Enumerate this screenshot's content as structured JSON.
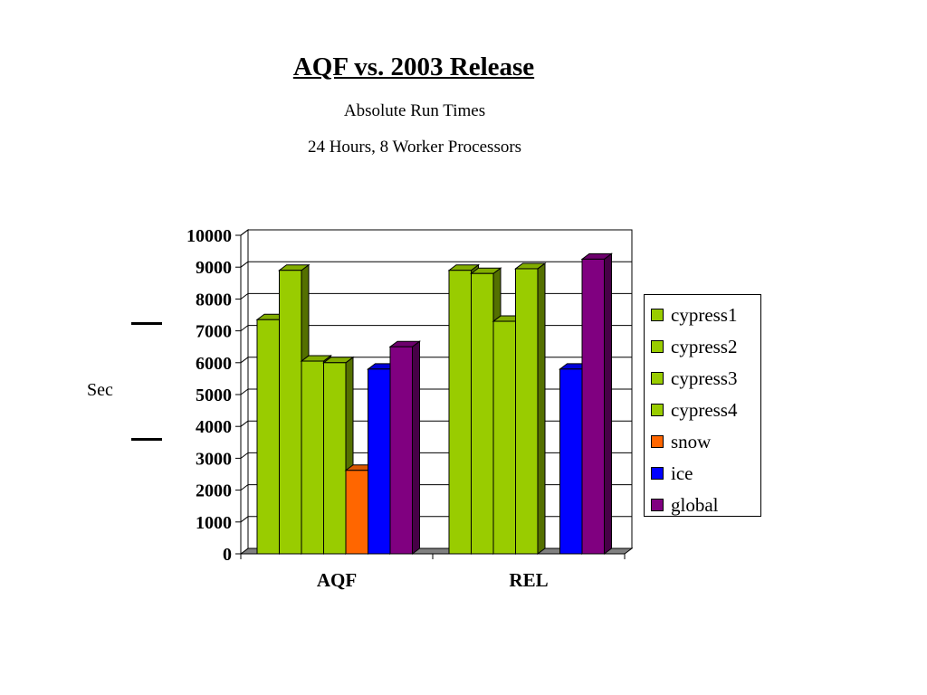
{
  "chart_data": {
    "type": "bar",
    "title": "AQF vs. 2003 Release",
    "subtitle": [
      "Absolute Run Times",
      "24 Hours,  8 Worker Processors"
    ],
    "xlabel": "",
    "ylabel": "Sec",
    "ylim": [
      0,
      10000
    ],
    "yticks": [
      0,
      1000,
      2000,
      3000,
      4000,
      5000,
      6000,
      7000,
      8000,
      9000,
      10000
    ],
    "grid": true,
    "legend_position": "right",
    "categories": [
      "AQF",
      "REL"
    ],
    "series": [
      {
        "name": "cypress1",
        "color": "#99cc00",
        "values": [
          7350,
          8900
        ]
      },
      {
        "name": "cypress2",
        "color": "#99cc00",
        "values": [
          8900,
          8800
        ]
      },
      {
        "name": "cypress3",
        "color": "#99cc00",
        "values": [
          6050,
          7300
        ]
      },
      {
        "name": "cypress4",
        "color": "#99cc00",
        "values": [
          6000,
          8950
        ]
      },
      {
        "name": "snow",
        "color": "#ff6600",
        "values": [
          2620,
          0
        ]
      },
      {
        "name": "ice",
        "color": "#0000ff",
        "values": [
          5800,
          5800
        ]
      },
      {
        "name": "global",
        "color": "#800080",
        "values": [
          6500,
          9250
        ]
      }
    ]
  }
}
